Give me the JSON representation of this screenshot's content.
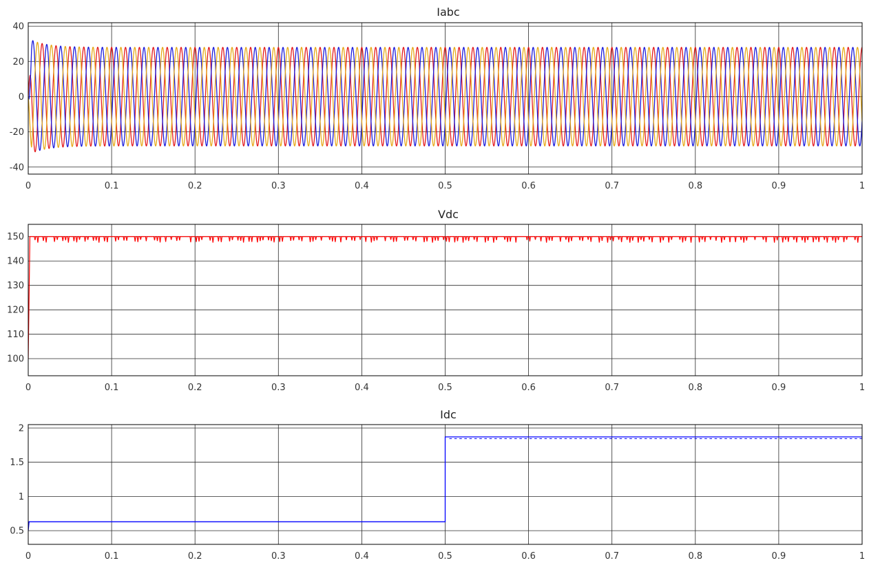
{
  "colors": {
    "phase_a": "#e41a1c",
    "phase_b": "#1a1adb",
    "phase_c": "#e6a817",
    "vdc": "#ff0000",
    "idc": "#0000ff",
    "grid": "#2a2a2a"
  },
  "chart_data": [
    {
      "type": "line",
      "title": "Iabc",
      "xlim": [
        0,
        1
      ],
      "ylim": [
        -44,
        42
      ],
      "x_ticks": [
        "0",
        "0.1",
        "0.2",
        "0.3",
        "0.4",
        "0.5",
        "0.6",
        "0.7",
        "0.8",
        "0.9",
        "1"
      ],
      "y_ticks": [
        -40,
        -20,
        0,
        20,
        40
      ],
      "y_tick_labels": [
        "-40",
        "-20",
        "0",
        "20",
        "40"
      ],
      "grid": true,
      "frequency_hz": 60,
      "series": [
        {
          "color": "#e41a1c",
          "amplitude": 28,
          "phase_deg": 90,
          "startup_peak": 33
        },
        {
          "color": "#1a1adb",
          "amplitude": 28,
          "phase_deg": -30,
          "startup_peak": 31
        },
        {
          "color": "#e6a817",
          "amplitude": 28,
          "phase_deg": 210,
          "startup_peak": -36
        }
      ]
    },
    {
      "type": "line",
      "title": "Vdc",
      "xlim": [
        0,
        1
      ],
      "ylim": [
        93,
        155
      ],
      "x_ticks": [
        "0",
        "0.1",
        "0.2",
        "0.3",
        "0.4",
        "0.5",
        "0.6",
        "0.7",
        "0.8",
        "0.9",
        "1"
      ],
      "y_ticks": [
        100,
        110,
        120,
        130,
        140,
        150
      ],
      "y_tick_labels": [
        "100",
        "110",
        "120",
        "130",
        "140",
        "150"
      ],
      "grid": true,
      "series": [
        {
          "color": "#ff0000",
          "start_value": 100,
          "steady_value": 150,
          "ripple_min": 147.5
        }
      ]
    },
    {
      "type": "line",
      "title": "Idc",
      "xlim": [
        0,
        1
      ],
      "ylim": [
        0.3,
        2.05
      ],
      "x_ticks": [
        "0",
        "0.1",
        "0.2",
        "0.3",
        "0.4",
        "0.5",
        "0.6",
        "0.7",
        "0.8",
        "0.9",
        "1"
      ],
      "y_ticks": [
        0.5,
        1,
        1.5,
        2
      ],
      "y_tick_labels": [
        "0.5",
        "1",
        "1.5",
        "2"
      ],
      "grid": true,
      "series": [
        {
          "color": "#0000ff",
          "points": [
            [
              0,
              0.5
            ],
            [
              0.001,
              0.63
            ],
            [
              0.5,
              0.63
            ],
            [
              0.5,
              1.87
            ],
            [
              1,
              1.87
            ]
          ]
        }
      ]
    }
  ]
}
